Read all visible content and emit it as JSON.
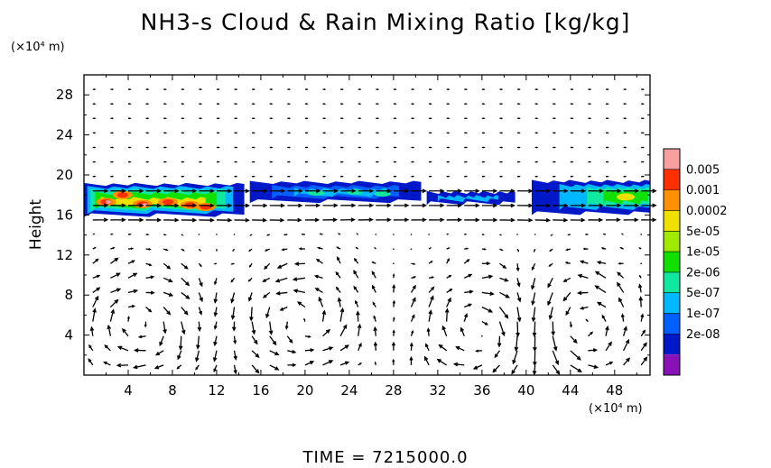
{
  "title": "NH3-s Cloud & Rain Mixing Ratio [kg/kg]",
  "y_unit": "(×10⁴ m)",
  "x_unit": "(×10⁴ m)",
  "time_label": "TIME  =  7215000.0",
  "chart_data": {
    "type": "heatmap",
    "title": "NH3-s Cloud & Rain Mixing Ratio [kg/kg]",
    "xlabel": "",
    "ylabel": "Height",
    "xlim": [
      0,
      51.2
    ],
    "ylim": [
      0,
      30
    ],
    "xticks": [
      4,
      8,
      12,
      16,
      20,
      24,
      28,
      32,
      36,
      40,
      44,
      48
    ],
    "yticks": [
      4,
      8,
      12,
      16,
      20,
      24,
      28
    ],
    "colorbar": {
      "labels": [
        "0.005",
        "0.001",
        "0.0002",
        "5e-05",
        "1e-05",
        "2e-06",
        "5e-07",
        "1e-07",
        "2e-08"
      ],
      "colors": [
        "#f8a0a0",
        "#ff3000",
        "#ff9000",
        "#f0e000",
        "#a0ea00",
        "#10e000",
        "#10e8a0",
        "#00b8ff",
        "#0060ff",
        "#0018c8",
        "#8a10b8"
      ]
    },
    "cloud_layers": [
      {
        "x": [
          0,
          14.5
        ],
        "y": [
          15.8,
          19.2
        ],
        "max_level": "0.005"
      },
      {
        "x": [
          15,
          31
        ],
        "y": [
          17,
          19.6
        ],
        "max_level": "5e-05"
      },
      {
        "x": [
          31,
          51.2
        ],
        "y": [
          16,
          19.5
        ],
        "max_level": "5e-05"
      }
    ],
    "vector_field": "wind arrows on regular grid",
    "grid": false
  }
}
